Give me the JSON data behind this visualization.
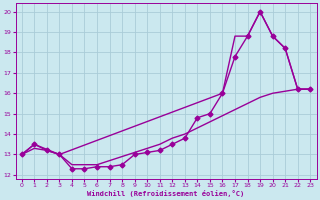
{
  "bg_color": "#cbe8ef",
  "grid_color": "#aaccd8",
  "line_color": "#990099",
  "markersize": 2.5,
  "linewidth": 1.0,
  "xlabel": "Windchill (Refroidissement éolien,°C)",
  "xlim": [
    -0.5,
    23.5
  ],
  "ylim": [
    11.8,
    20.4
  ],
  "yticks": [
    12,
    13,
    14,
    15,
    16,
    17,
    18,
    19,
    20
  ],
  "xticks": [
    0,
    1,
    2,
    3,
    4,
    5,
    6,
    7,
    8,
    9,
    10,
    11,
    12,
    13,
    14,
    15,
    16,
    17,
    18,
    19,
    20,
    21,
    22,
    23
  ],
  "line_marked_x": [
    0,
    1,
    2,
    3,
    4,
    5,
    6,
    7,
    8,
    9,
    10,
    11,
    12,
    13,
    14,
    15,
    16,
    17,
    18,
    19,
    20,
    21,
    22,
    23
  ],
  "line_marked_y": [
    13.0,
    13.5,
    13.2,
    13.0,
    12.3,
    12.3,
    12.4,
    12.4,
    12.5,
    13.0,
    13.1,
    13.2,
    13.5,
    13.8,
    14.8,
    15.0,
    16.0,
    17.8,
    18.8,
    20.0,
    18.8,
    18.2,
    16.2,
    16.2
  ],
  "line_upper_x": [
    0,
    1,
    3,
    16,
    17,
    18,
    19,
    20,
    21,
    22,
    23
  ],
  "line_upper_y": [
    13.0,
    13.5,
    13.0,
    16.0,
    18.8,
    18.8,
    20.0,
    18.8,
    18.2,
    16.2,
    16.2
  ],
  "line_lower_x": [
    0,
    1,
    2,
    3,
    4,
    5,
    6,
    7,
    8,
    9,
    10,
    11,
    12,
    13,
    14,
    15,
    16,
    17,
    18,
    19,
    20,
    21,
    22,
    23
  ],
  "line_lower_y": [
    13.0,
    13.3,
    13.2,
    13.0,
    12.5,
    12.5,
    12.5,
    12.7,
    12.9,
    13.1,
    13.3,
    13.5,
    13.8,
    14.0,
    14.3,
    14.6,
    14.9,
    15.2,
    15.5,
    15.8,
    16.0,
    16.1,
    16.2,
    16.2
  ]
}
